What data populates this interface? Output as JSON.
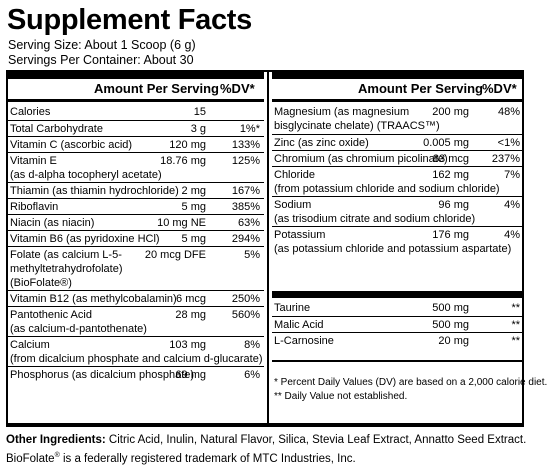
{
  "title": "Supplement Facts",
  "serving_size": "Serving Size:  About 1 Scoop (6 g)",
  "servings_per_container": "Servings Per Container: About 30",
  "header": {
    "amount_label": "Amount Per Serving",
    "dv_label": "%DV*"
  },
  "left_rows": [
    {
      "name": "Calories",
      "amount": "15",
      "dv": ""
    },
    {
      "name": "Total Carbohydrate",
      "amount": "3 g",
      "dv": "1%*"
    },
    {
      "name": "Vitamin C (ascorbic acid)",
      "amount": "120 mg",
      "dv": "133%"
    },
    {
      "name": "Vitamin E",
      "amount": "18.76 mg",
      "dv": "125%",
      "sub": "(as d-alpha tocopheryl acetate)"
    },
    {
      "name": "Thiamin (as thiamin hydrochloride)",
      "amount": "2 mg",
      "dv": "167%"
    },
    {
      "name": "Riboflavin",
      "amount": "5 mg",
      "dv": "385%"
    },
    {
      "name": "Niacin (as niacin)",
      "amount": "10 mg NE",
      "dv": "63%"
    },
    {
      "name": "Vitamin B6 (as pyridoxine HCl)",
      "amount": "5 mg",
      "dv": "294%"
    },
    {
      "name": "Folate (as calcium L-5-",
      "amount": "20 mcg DFE",
      "dv": "5%",
      "sub": "methyltetrahydrofolate)",
      "sub2": "(BioFolate®)"
    },
    {
      "name": "Vitamin B12 (as methylcobalamin)",
      "amount": "6 mcg",
      "dv": "250%"
    },
    {
      "name": "Pantothenic Acid",
      "amount": "28 mg",
      "dv": "560%",
      "sub": "(as calcium-d-pantothenate)"
    },
    {
      "name": "Calcium",
      "amount": "103 mg",
      "dv": "8%",
      "sub": "(from dicalcium phosphate and calcium d-glucarate)"
    },
    {
      "name": "Phosphorus (as dicalcium phosphate)",
      "amount": "69 mg",
      "dv": "6%"
    }
  ],
  "right_rows": [
    {
      "name": "Magnesium (as magnesium",
      "amount": "200 mg",
      "dv": "48%",
      "sub": "bisglycinate chelate) (TRAACS™)"
    },
    {
      "name": "Zinc (as zinc oxide)",
      "amount": "0.005 mg",
      "dv": "<1%"
    },
    {
      "name": "Chromium (as chromium picolinate)",
      "amount": "83 mcg",
      "dv": "237%"
    },
    {
      "name": "Chloride",
      "amount": "162 mg",
      "dv": "7%",
      "sub": "(from potassium chloride and sodium chloride)"
    },
    {
      "name": "Sodium",
      "amount": "96 mg",
      "dv": "4%",
      "sub": "(as trisodium citrate and sodium chloride)"
    },
    {
      "name": "Potassium",
      "amount": "176 mg",
      "dv": "4%",
      "sub": "(as potassium chloride and potassium aspartate)"
    }
  ],
  "right_rows_2": [
    {
      "name": "Taurine",
      "amount": "500 mg",
      "dv": "**"
    },
    {
      "name": "Malic Acid",
      "amount": "500 mg",
      "dv": "**"
    },
    {
      "name": "L-Carnosine",
      "amount": "20 mg",
      "dv": "**"
    }
  ],
  "footnotes": [
    "* Percent Daily Values (DV) are based on a 2,000 calorie diet.",
    "** Daily Value not established."
  ],
  "other_ingredients_label": "Other Ingredients:",
  "other_ingredients_text": " Citric Acid, Inulin, Natural Flavor, Silica, Stevia Leaf Extract, Annatto Seed Extract.",
  "trademark_prefix": "BioFolate",
  "trademark_mark": "®",
  "trademark_suffix": " is a federally registered trademark of MTC Industries, Inc."
}
